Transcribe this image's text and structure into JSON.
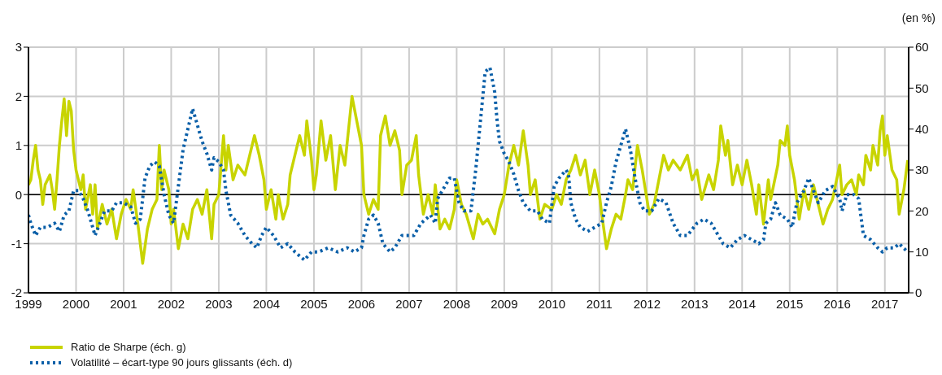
{
  "chart_data": {
    "type": "line",
    "y2label": "(en %)",
    "xlim": [
      1999,
      2017.5
    ],
    "xticks": [
      1999,
      2000,
      2001,
      2002,
      2003,
      2004,
      2005,
      2006,
      2007,
      2008,
      2009,
      2010,
      2011,
      2012,
      2013,
      2014,
      2015,
      2016,
      2017
    ],
    "ylim": [
      -2,
      3
    ],
    "yticks": [
      -2,
      -1,
      0,
      1,
      2,
      3
    ],
    "y2lim": [
      0,
      60
    ],
    "y2ticks": [
      0,
      10,
      20,
      30,
      40,
      50,
      60
    ],
    "grid": true,
    "legend": "bottom left",
    "marker": "none",
    "ref_lines": [
      {
        "axis": "y",
        "value": 0,
        "color": "#000000"
      }
    ],
    "series": [
      {
        "name": "Ratio de Sharpe (éch. g)",
        "color": "#c8d400",
        "line_style": "solid",
        "x": [
          1999.0,
          1999.05,
          1999.1,
          1999.15,
          1999.2,
          1999.25,
          1999.3,
          1999.35,
          1999.45,
          1999.5,
          1999.55,
          1999.6,
          1999.65,
          1999.7,
          1999.75,
          1999.8,
          1999.85,
          1999.9,
          1999.95,
          2000.0,
          2000.05,
          2000.1,
          2000.15,
          2000.2,
          2000.3,
          2000.35,
          2000.4,
          2000.45,
          2000.55,
          2000.65,
          2000.75,
          2000.85,
          2000.95,
          2001.05,
          2001.15,
          2001.2,
          2001.3,
          2001.4,
          2001.5,
          2001.6,
          2001.7,
          2001.75,
          2001.8,
          2001.85,
          2001.95,
          2002.0,
          2002.05,
          2002.15,
          2002.25,
          2002.35,
          2002.45,
          2002.55,
          2002.65,
          2002.75,
          2002.85,
          2002.9,
          2003.0,
          2003.05,
          2003.1,
          2003.15,
          2003.2,
          2003.3,
          2003.4,
          2003.55,
          2003.65,
          2003.75,
          2003.85,
          2003.95,
          2004.0,
          2004.1,
          2004.2,
          2004.25,
          2004.35,
          2004.45,
          2004.5,
          2004.6,
          2004.7,
          2004.8,
          2004.85,
          2004.95,
          2005.0,
          2005.05,
          2005.15,
          2005.25,
          2005.35,
          2005.45,
          2005.55,
          2005.65,
          2005.8,
          2005.9,
          2006.0,
          2006.05,
          2006.15,
          2006.25,
          2006.35,
          2006.4,
          2006.5,
          2006.6,
          2006.7,
          2006.8,
          2006.85,
          2006.95,
          2007.05,
          2007.15,
          2007.2,
          2007.3,
          2007.4,
          2007.5,
          2007.55,
          2007.65,
          2007.75,
          2007.85,
          2007.95,
          2008.0,
          2008.1,
          2008.2,
          2008.35,
          2008.45,
          2008.55,
          2008.65,
          2008.8,
          2008.9,
          2009.0,
          2009.1,
          2009.2,
          2009.3,
          2009.4,
          2009.5,
          2009.55,
          2009.65,
          2009.75,
          2009.85,
          2010.0,
          2010.1,
          2010.2,
          2010.3,
          2010.4,
          2010.5,
          2010.6,
          2010.7,
          2010.8,
          2010.9,
          2011.0,
          2011.05,
          2011.15,
          2011.25,
          2011.35,
          2011.45,
          2011.55,
          2011.6,
          2011.7,
          2011.8,
          2011.9,
          2012.0,
          2012.05,
          2012.15,
          2012.25,
          2012.35,
          2012.45,
          2012.55,
          2012.7,
          2012.85,
          2012.95,
          2013.05,
          2013.15,
          2013.3,
          2013.4,
          2013.5,
          2013.55,
          2013.65,
          2013.7,
          2013.8,
          2013.9,
          2014.0,
          2014.1,
          2014.2,
          2014.3,
          2014.35,
          2014.45,
          2014.55,
          2014.6,
          2014.75,
          2014.8,
          2014.9,
          2014.95,
          2015.0,
          2015.1,
          2015.2,
          2015.3,
          2015.4,
          2015.5,
          2015.6,
          2015.7,
          2015.8,
          2015.9,
          2016.05,
          2016.1,
          2016.2,
          2016.3,
          2016.4,
          2016.45,
          2016.55,
          2016.6,
          2016.7,
          2016.75,
          2016.85,
          2016.9,
          2016.95,
          2017.0,
          2017.05,
          2017.15,
          2017.25,
          2017.3,
          2017.4,
          2017.48
        ],
        "values": [
          0.2,
          0.3,
          0.7,
          1.0,
          0.5,
          0.3,
          -0.2,
          0.2,
          0.4,
          0.1,
          -0.3,
          0.3,
          1.0,
          1.5,
          1.95,
          1.2,
          1.9,
          1.7,
          0.9,
          0.5,
          0.3,
          0.1,
          0.4,
          -0.3,
          0.2,
          -0.4,
          0.2,
          -0.7,
          -0.2,
          -0.6,
          -0.3,
          -0.9,
          -0.4,
          -0.1,
          -0.3,
          0.1,
          -0.6,
          -1.4,
          -0.7,
          -0.3,
          -0.1,
          1.0,
          0.1,
          0.5,
          0.1,
          -0.6,
          -0.3,
          -1.1,
          -0.6,
          -0.9,
          -0.3,
          -0.1,
          -0.4,
          0.1,
          -0.9,
          -0.2,
          0.0,
          0.6,
          1.2,
          0.5,
          1.0,
          0.3,
          0.6,
          0.4,
          0.8,
          1.2,
          0.8,
          0.3,
          -0.3,
          0.1,
          -0.5,
          0.0,
          -0.5,
          -0.2,
          0.4,
          0.8,
          1.2,
          0.8,
          1.5,
          0.7,
          0.1,
          0.4,
          1.5,
          0.7,
          1.2,
          0.1,
          1.0,
          0.6,
          2.0,
          1.5,
          1.0,
          0.0,
          -0.4,
          -0.1,
          -0.3,
          1.2,
          1.6,
          1.0,
          1.3,
          0.9,
          0.0,
          0.6,
          0.7,
          1.2,
          0.4,
          -0.4,
          0.0,
          -0.4,
          0.2,
          -0.7,
          -0.5,
          -0.7,
          -0.3,
          0.3,
          -0.2,
          -0.4,
          -0.9,
          -0.4,
          -0.6,
          -0.5,
          -0.8,
          -0.3,
          0.0,
          0.6,
          1.0,
          0.6,
          1.3,
          0.6,
          0.0,
          0.3,
          -0.5,
          -0.2,
          -0.3,
          0.0,
          -0.2,
          0.3,
          0.5,
          0.8,
          0.4,
          0.7,
          0.0,
          0.5,
          0.0,
          -0.4,
          -1.1,
          -0.7,
          -0.4,
          -0.5,
          0.0,
          0.3,
          0.1,
          1.0,
          0.5,
          -0.1,
          -0.4,
          -0.2,
          0.3,
          0.8,
          0.5,
          0.7,
          0.5,
          0.8,
          0.3,
          0.5,
          -0.1,
          0.4,
          0.1,
          0.7,
          1.4,
          0.8,
          1.1,
          0.2,
          0.6,
          0.2,
          0.7,
          0.2,
          -0.4,
          0.2,
          -0.6,
          0.3,
          -0.1,
          0.6,
          1.1,
          1.0,
          1.4,
          0.8,
          0.3,
          -0.5,
          0.1,
          -0.3,
          0.2,
          -0.2,
          -0.6,
          -0.3,
          -0.1,
          0.6,
          0.0,
          0.2,
          0.3,
          0.0,
          0.4,
          0.2,
          0.8,
          0.5,
          1.0,
          0.6,
          1.3,
          1.6,
          0.8,
          1.2,
          0.5,
          0.3,
          -0.4,
          0.1,
          0.7
        ]
      },
      {
        "name": "Volatilité – écart-type 90 jours glissants (éch. d)",
        "color": "#0a5fa8",
        "line_style": "dotted",
        "axis": "y2",
        "x": [
          1999.0,
          1999.05,
          1999.15,
          1999.25,
          1999.4,
          1999.55,
          1999.65,
          1999.75,
          1999.85,
          1999.95,
          2000.05,
          2000.15,
          2000.25,
          2000.35,
          2000.4,
          2000.5,
          2000.6,
          2000.75,
          2000.85,
          2001.0,
          2001.15,
          2001.25,
          2001.35,
          2001.45,
          2001.55,
          2001.65,
          2001.75,
          2001.85,
          2001.95,
          2002.05,
          2002.15,
          2002.25,
          2002.35,
          2002.45,
          2002.55,
          2002.65,
          2002.75,
          2002.85,
          2002.9,
          2003.0,
          2003.1,
          2003.15,
          2003.25,
          2003.4,
          2003.55,
          2003.7,
          2003.8,
          2003.9,
          2004.0,
          2004.15,
          2004.3,
          2004.45,
          2004.6,
          2004.8,
          2004.95,
          2005.1,
          2005.3,
          2005.5,
          2005.7,
          2005.85,
          2006.0,
          2006.05,
          2006.15,
          2006.25,
          2006.35,
          2006.45,
          2006.6,
          2006.7,
          2006.85,
          2006.95,
          2007.1,
          2007.25,
          2007.45,
          2007.55,
          2007.6,
          2007.7,
          2007.85,
          2007.95,
          2008.05,
          2008.15,
          2008.3,
          2008.4,
          2008.5,
          2008.6,
          2008.7,
          2008.8,
          2008.85,
          2008.9,
          2009.0,
          2009.1,
          2009.2,
          2009.3,
          2009.4,
          2009.55,
          2009.7,
          2009.8,
          2009.95,
          2010.05,
          2010.15,
          2010.3,
          2010.35,
          2010.4,
          2010.5,
          2010.6,
          2010.75,
          2010.9,
          2011.05,
          2011.15,
          2011.25,
          2011.35,
          2011.45,
          2011.55,
          2011.65,
          2011.75,
          2011.85,
          2011.95,
          2012.1,
          2012.25,
          2012.4,
          2012.55,
          2012.7,
          2012.85,
          2013.05,
          2013.2,
          2013.35,
          2013.5,
          2013.6,
          2013.75,
          2013.9,
          2014.05,
          2014.2,
          2014.35,
          2014.45,
          2014.5,
          2014.6,
          2014.7,
          2014.8,
          2014.95,
          2015.05,
          2015.15,
          2015.3,
          2015.4,
          2015.5,
          2015.6,
          2015.75,
          2015.9,
          2016.05,
          2016.1,
          2016.2,
          2016.35,
          2016.45,
          2016.55,
          2016.7,
          2016.85,
          2016.95,
          2017.05,
          2017.2,
          2017.3,
          2017.48
        ],
        "values": [
          19,
          17,
          14,
          16,
          16,
          17,
          15,
          19,
          20,
          25,
          25,
          23,
          20,
          16,
          14,
          17,
          20,
          20,
          22,
          22,
          21,
          17,
          18,
          28,
          31,
          32,
          31,
          24,
          19,
          17,
          26,
          35,
          40,
          45,
          41,
          37,
          34,
          30,
          33,
          32,
          30,
          25,
          19,
          17,
          14,
          12,
          11,
          14,
          16,
          14,
          11,
          12,
          10,
          8,
          10,
          10,
          11,
          10,
          11,
          10,
          11,
          14,
          18,
          19,
          17,
          12,
          10,
          11,
          14,
          14,
          14,
          17,
          19,
          17,
          23,
          25,
          28,
          28,
          22,
          20,
          20,
          30,
          42,
          54,
          55,
          49,
          42,
          37,
          34,
          32,
          29,
          25,
          22,
          20,
          20,
          18,
          17,
          26,
          28,
          30,
          29,
          22,
          18,
          16,
          15,
          16,
          17,
          22,
          26,
          32,
          36,
          40,
          35,
          28,
          22,
          20,
          20,
          23,
          22,
          17,
          14,
          14,
          17,
          18,
          17,
          14,
          12,
          11,
          13,
          14,
          13,
          12,
          13,
          17,
          18,
          22,
          19,
          18,
          16,
          22,
          25,
          28,
          25,
          22,
          25,
          26,
          23,
          20,
          24,
          24,
          23,
          14,
          13,
          11,
          10,
          11,
          11,
          12,
          10
        ]
      }
    ]
  }
}
